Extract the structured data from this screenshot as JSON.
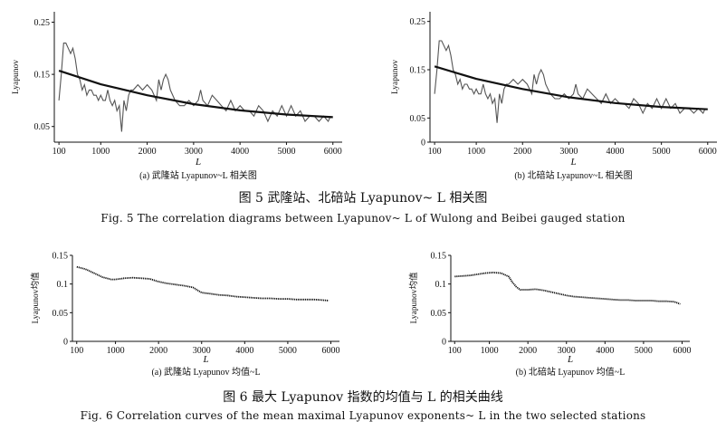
{
  "figure5": {
    "caption_cn": "图 5    武隆站、北碚站 Lyapunov~ L 相关图",
    "caption_en": "Fig. 5    The correlation diagrams between Lyapunov~ L of Wulong and Beibei gauged station"
  },
  "figure6": {
    "caption_cn": "图 6    最大 Lyapunov 指数的均值与 L 的相关曲线",
    "caption_en": "Fig. 6    Correlation curves of the mean maximal Lyapunov exponents~ L in the two selected stations"
  },
  "colors": {
    "line": "#555555",
    "trend": "#111111",
    "axis": "#111111"
  },
  "chart_data": [
    {
      "type": "line",
      "id": "c5a",
      "subtitle": "(a) 武隆站 Lyapunov~L 相关图",
      "xlabel": "L",
      "ylabel": "Lyapunov",
      "xlim": [
        0,
        6200
      ],
      "ylim": [
        0.02,
        0.27
      ],
      "xticks": [
        100,
        1000,
        2000,
        3000,
        4000,
        5000,
        6000
      ],
      "yticks": [
        0.05,
        0.15,
        0.25
      ],
      "grid": false,
      "legend": "none",
      "series": [
        {
          "style": "raw",
          "x": [
            100,
            150,
            200,
            250,
            300,
            350,
            400,
            450,
            500,
            550,
            600,
            650,
            700,
            750,
            800,
            850,
            900,
            950,
            1000,
            1050,
            1100,
            1150,
            1200,
            1250,
            1300,
            1350,
            1400,
            1450,
            1500,
            1550,
            1600,
            1650,
            1700,
            1800,
            1900,
            2000,
            2100,
            2200,
            2250,
            2300,
            2350,
            2400,
            2450,
            2500,
            2600,
            2700,
            2800,
            2900,
            3000,
            3100,
            3150,
            3200,
            3300,
            3400,
            3500,
            3600,
            3700,
            3800,
            3900,
            4000,
            4100,
            4200,
            4300,
            4400,
            4500,
            4600,
            4700,
            4800,
            4900,
            5000,
            5100,
            5200,
            5300,
            5400,
            5500,
            5600,
            5700,
            5800,
            5900,
            5950
          ],
          "y": [
            0.1,
            0.15,
            0.21,
            0.21,
            0.2,
            0.19,
            0.2,
            0.18,
            0.15,
            0.14,
            0.12,
            0.13,
            0.11,
            0.12,
            0.12,
            0.11,
            0.11,
            0.1,
            0.11,
            0.1,
            0.1,
            0.12,
            0.1,
            0.09,
            0.1,
            0.08,
            0.09,
            0.04,
            0.1,
            0.08,
            0.11,
            0.12,
            0.12,
            0.13,
            0.12,
            0.13,
            0.12,
            0.1,
            0.14,
            0.12,
            0.14,
            0.15,
            0.14,
            0.12,
            0.1,
            0.09,
            0.09,
            0.1,
            0.09,
            0.1,
            0.12,
            0.1,
            0.09,
            0.11,
            0.1,
            0.09,
            0.08,
            0.1,
            0.08,
            0.09,
            0.08,
            0.08,
            0.07,
            0.09,
            0.08,
            0.06,
            0.08,
            0.07,
            0.09,
            0.07,
            0.09,
            0.07,
            0.08,
            0.06,
            0.07,
            0.07,
            0.06,
            0.07,
            0.06,
            0.07
          ]
        },
        {
          "style": "trend",
          "x": [
            100,
            1000,
            2000,
            3000,
            4000,
            5000,
            6000
          ],
          "y": [
            0.157,
            0.131,
            0.11,
            0.093,
            0.081,
            0.073,
            0.068
          ]
        }
      ]
    },
    {
      "type": "line",
      "id": "c5b",
      "subtitle": "(b) 北碚站 Lyapunov~L 相关图",
      "xlabel": "L",
      "ylabel": "Lyapunov",
      "xlim": [
        0,
        6200
      ],
      "ylim": [
        0,
        0.27
      ],
      "xticks": [
        100,
        1000,
        2000,
        3000,
        4000,
        5000,
        6000
      ],
      "yticks": [
        0,
        0.05,
        0.15,
        0.25
      ],
      "grid": false,
      "legend": "none",
      "series": [
        {
          "style": "raw",
          "x": [
            100,
            150,
            200,
            250,
            300,
            350,
            400,
            450,
            500,
            550,
            600,
            650,
            700,
            750,
            800,
            850,
            900,
            950,
            1000,
            1050,
            1100,
            1150,
            1200,
            1250,
            1300,
            1350,
            1400,
            1450,
            1500,
            1550,
            1600,
            1650,
            1700,
            1800,
            1900,
            2000,
            2100,
            2200,
            2250,
            2300,
            2350,
            2400,
            2450,
            2500,
            2600,
            2700,
            2800,
            2900,
            3000,
            3100,
            3150,
            3200,
            3300,
            3400,
            3500,
            3600,
            3700,
            3800,
            3900,
            4000,
            4100,
            4200,
            4300,
            4400,
            4500,
            4600,
            4700,
            4800,
            4900,
            5000,
            5100,
            5200,
            5300,
            5400,
            5500,
            5600,
            5700,
            5800,
            5900,
            5950
          ],
          "y": [
            0.1,
            0.15,
            0.21,
            0.21,
            0.2,
            0.19,
            0.2,
            0.18,
            0.15,
            0.14,
            0.12,
            0.13,
            0.11,
            0.12,
            0.12,
            0.11,
            0.11,
            0.1,
            0.11,
            0.1,
            0.1,
            0.12,
            0.1,
            0.09,
            0.1,
            0.08,
            0.09,
            0.04,
            0.1,
            0.08,
            0.11,
            0.12,
            0.12,
            0.13,
            0.12,
            0.13,
            0.12,
            0.1,
            0.14,
            0.12,
            0.14,
            0.15,
            0.14,
            0.12,
            0.1,
            0.09,
            0.09,
            0.1,
            0.09,
            0.1,
            0.12,
            0.1,
            0.09,
            0.11,
            0.1,
            0.09,
            0.08,
            0.1,
            0.08,
            0.09,
            0.08,
            0.08,
            0.07,
            0.09,
            0.08,
            0.06,
            0.08,
            0.07,
            0.09,
            0.07,
            0.09,
            0.07,
            0.08,
            0.06,
            0.07,
            0.07,
            0.06,
            0.07,
            0.06,
            0.07
          ]
        },
        {
          "style": "trend",
          "x": [
            100,
            1000,
            2000,
            3000,
            4000,
            5000,
            6000
          ],
          "y": [
            0.157,
            0.131,
            0.11,
            0.093,
            0.081,
            0.073,
            0.068
          ]
        }
      ]
    },
    {
      "type": "line",
      "id": "c6a",
      "subtitle": "(a) 武隆站 Lyapunov 均值~L",
      "xlabel": "L",
      "ylabel": "Lyapunov均值",
      "xlim": [
        0,
        6200
      ],
      "ylim": [
        0,
        0.15
      ],
      "xticks": [
        100,
        1000,
        2000,
        3000,
        4000,
        5000,
        6000
      ],
      "yticks": [
        0,
        0.05,
        0.1,
        0.15
      ],
      "ytick_labels": [
        "0",
        "0.05",
        "0.1",
        "0.15"
      ],
      "grid": false,
      "legend": "none",
      "series": [
        {
          "style": "mean",
          "x": [
            100,
            300,
            500,
            700,
            900,
            1000,
            1200,
            1400,
            1600,
            1800,
            2000,
            2200,
            2400,
            2600,
            2800,
            3000,
            3200,
            3400,
            3600,
            3800,
            4000,
            4200,
            4400,
            4600,
            4800,
            5000,
            5200,
            5400,
            5600,
            5800,
            5950
          ],
          "y": [
            0.13,
            0.126,
            0.119,
            0.112,
            0.108,
            0.108,
            0.11,
            0.111,
            0.11,
            0.109,
            0.104,
            0.101,
            0.099,
            0.097,
            0.094,
            0.085,
            0.083,
            0.081,
            0.08,
            0.078,
            0.077,
            0.076,
            0.075,
            0.075,
            0.074,
            0.074,
            0.073,
            0.073,
            0.073,
            0.072,
            0.071
          ]
        }
      ]
    },
    {
      "type": "line",
      "id": "c6b",
      "subtitle": "(b) 北碚站 Lyapunov 均值~L",
      "xlabel": "L",
      "ylabel": "Lyapunov均值",
      "xlim": [
        0,
        6200
      ],
      "ylim": [
        0,
        0.15
      ],
      "xticks": [
        100,
        1000,
        2000,
        3000,
        4000,
        5000,
        6000
      ],
      "yticks": [
        0,
        0.05,
        0.1,
        0.15
      ],
      "ytick_labels": [
        "0",
        "0.05",
        "0.1",
        "0.15"
      ],
      "grid": false,
      "legend": "none",
      "series": [
        {
          "style": "mean",
          "x": [
            100,
            300,
            500,
            700,
            900,
            1100,
            1300,
            1500,
            1600,
            1700,
            1800,
            2000,
            2200,
            2400,
            2600,
            2800,
            3000,
            3200,
            3400,
            3600,
            3800,
            4000,
            4200,
            4400,
            4600,
            4800,
            5000,
            5200,
            5400,
            5600,
            5800,
            5950
          ],
          "y": [
            0.113,
            0.114,
            0.115,
            0.117,
            0.119,
            0.12,
            0.119,
            0.113,
            0.103,
            0.095,
            0.09,
            0.09,
            0.091,
            0.089,
            0.086,
            0.083,
            0.08,
            0.078,
            0.077,
            0.076,
            0.075,
            0.074,
            0.073,
            0.072,
            0.072,
            0.071,
            0.071,
            0.071,
            0.07,
            0.07,
            0.069,
            0.065
          ]
        }
      ]
    }
  ]
}
